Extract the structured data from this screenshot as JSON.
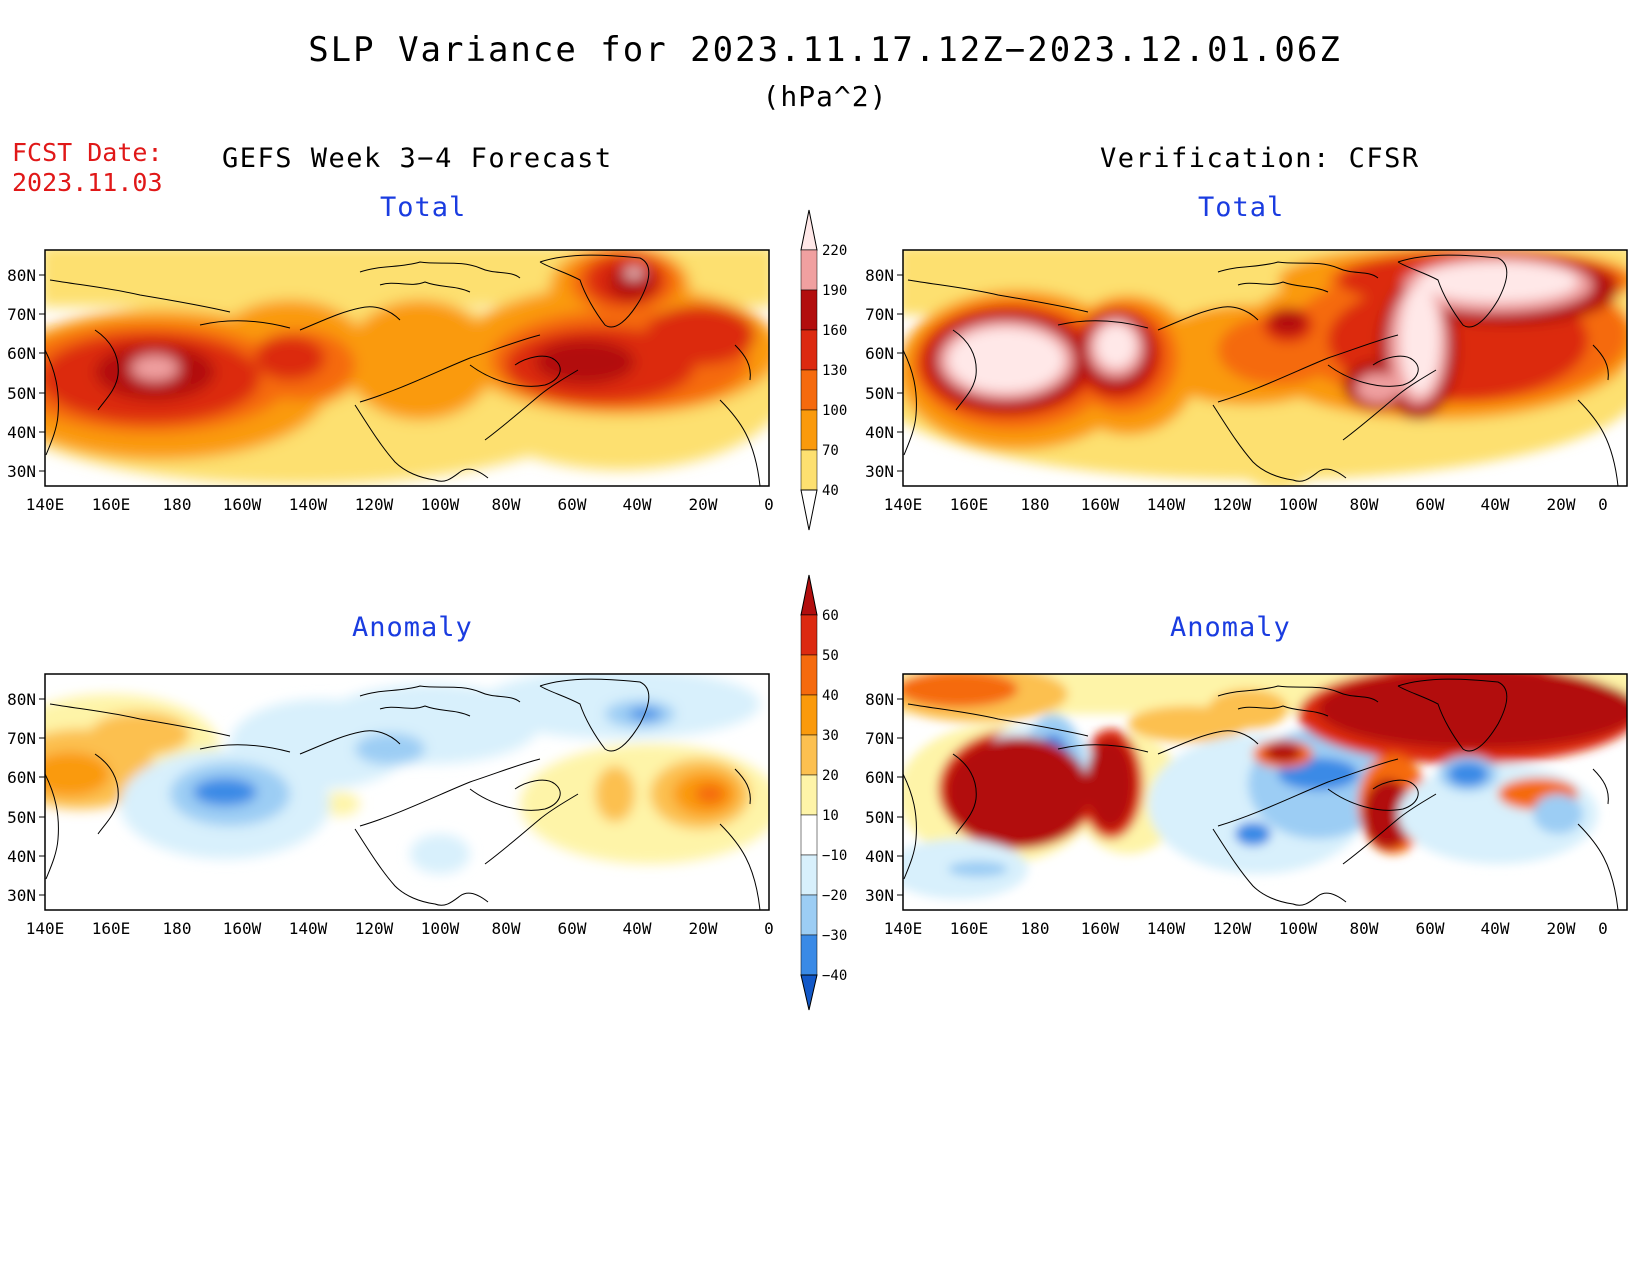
{
  "header": {
    "title": "SLP Variance for 2023.11.17.12Z−2023.12.01.06Z",
    "units": "(hPa^2)",
    "fcst_label": "FCST Date:",
    "fcst_date": "2023.11.03",
    "left_heading": "GEFS Week 3−4 Forecast",
    "right_heading": "Verification: CFSR"
  },
  "axes": {
    "lon_labels": [
      "140E",
      "160E",
      "180",
      "160W",
      "140W",
      "120W",
      "100W",
      "80W",
      "60W",
      "40W",
      "20W",
      "0"
    ],
    "lat_labels": [
      "80N",
      "70N",
      "60N",
      "50N",
      "40N",
      "30N"
    ]
  },
  "panels": [
    {
      "id": "gefs-total",
      "subtitle": "Total",
      "field": "total"
    },
    {
      "id": "cfsr-total",
      "subtitle": "Total",
      "field": "total"
    },
    {
      "id": "gefs-anomaly",
      "subtitle": "Anomaly",
      "field": "anomaly"
    },
    {
      "id": "cfsr-anomaly",
      "subtitle": "Anomaly",
      "field": "anomaly"
    }
  ],
  "colorbar_total": {
    "labels": [
      "220",
      "190",
      "160",
      "130",
      "100",
      "70",
      "40"
    ],
    "colors": [
      "#ffe8e8",
      "#f0a0a0",
      "#b20e0e",
      "#dc2a10",
      "#f56a0e",
      "#fa9a0c",
      "#fde070"
    ],
    "below_color": "#ffffff"
  },
  "colorbar_anomaly": {
    "labels": [
      "60",
      "50",
      "40",
      "30",
      "20",
      "10",
      "−10",
      "−20",
      "−30",
      "−40"
    ],
    "colors": [
      "#b20e0e",
      "#dc2a10",
      "#f56a0e",
      "#fa9a0c",
      "#fcc050",
      "#fef4a8",
      "#ffffff",
      "#d8f0fc",
      "#9ccdf4",
      "#3a8ae6",
      "#1258c8"
    ]
  }
}
